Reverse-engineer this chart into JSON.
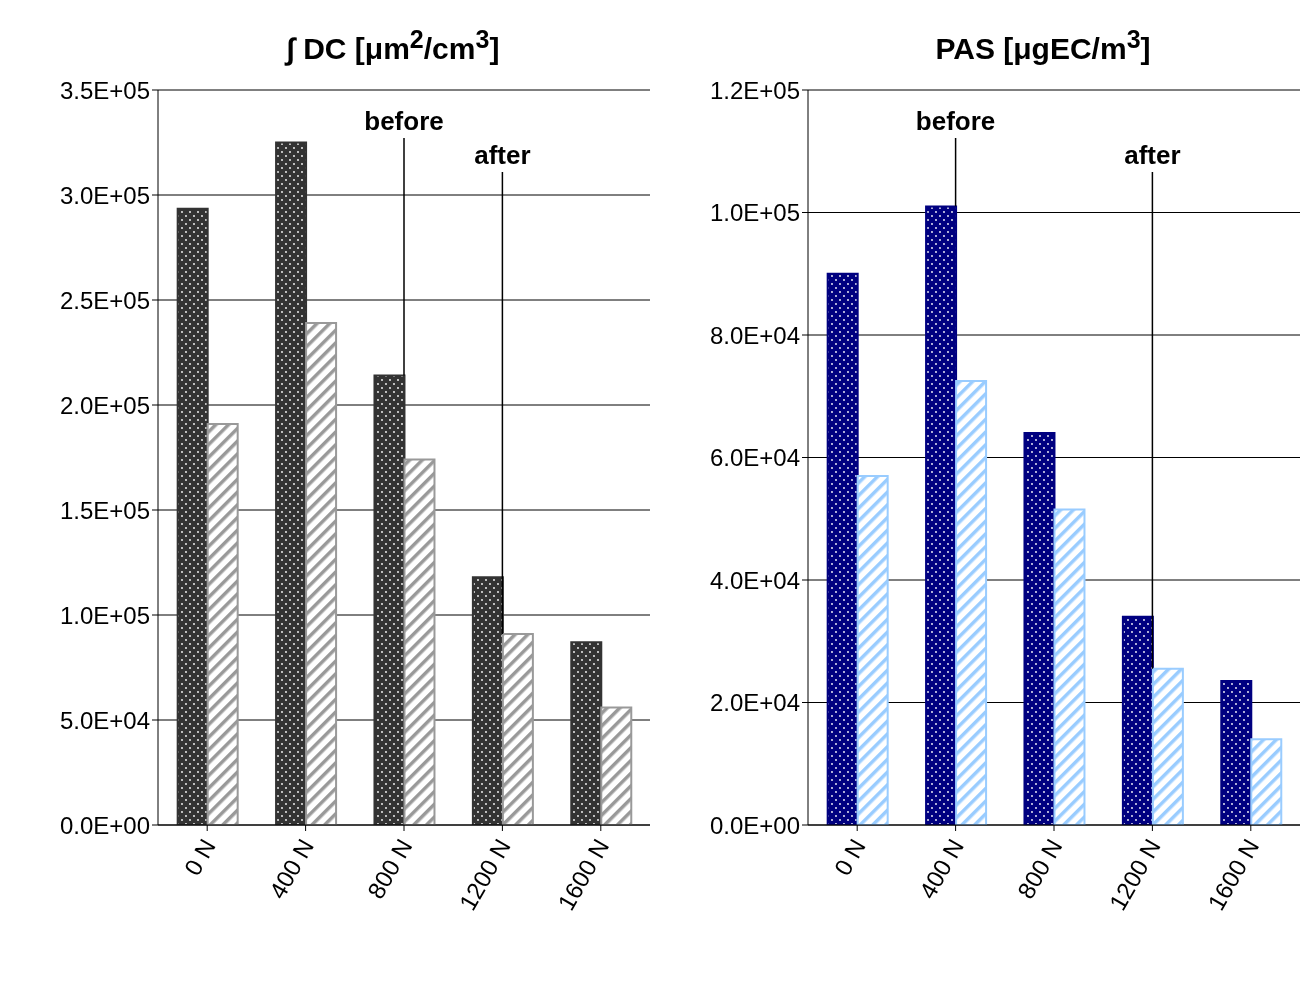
{
  "chart_data": [
    {
      "type": "bar",
      "title": "∫ DC [μm$^{2}$/cm$^{3}$]",
      "categories": [
        "0 N",
        "400 N",
        "800 N",
        "1200 N",
        "1600 N"
      ],
      "series": [
        {
          "color": "#333333",
          "values": [
            293500,
            325000,
            214000,
            118000,
            87000
          ]
        },
        {
          "color": "#999999",
          "values": [
            191000,
            239000,
            174000,
            91000,
            56000
          ]
        }
      ],
      "ylim": [
        0,
        350000
      ],
      "yticks": [
        {
          "value": 0,
          "label": "0.0E+00"
        },
        {
          "value": 50000,
          "label": "5.0E+04"
        },
        {
          "value": 100000,
          "label": "1.0E+05"
        },
        {
          "value": 150000,
          "label": "1.5E+05"
        },
        {
          "value": 200000,
          "label": "2.0E+05"
        },
        {
          "value": 250000,
          "label": "2.5E+05"
        },
        {
          "value": 300000,
          "label": "3.0E+05"
        },
        {
          "value": 350000,
          "label": "3.5E+05"
        }
      ],
      "grid": "y",
      "annotations": [
        {
          "text": "before",
          "x": "800 N",
          "y": 214000
        },
        {
          "text": "after",
          "x": "1200 N",
          "y": 91000
        }
      ]
    },
    {
      "type": "bar",
      "title": "PAS [μgEC/m$^{3}$]",
      "categories": [
        "0 N",
        "400 N",
        "800 N",
        "1200 N",
        "1600 N"
      ],
      "series": [
        {
          "color": "#000080",
          "values": [
            90000,
            101000,
            64000,
            34000,
            23500
          ]
        },
        {
          "color": "#99ccff",
          "values": [
            57000,
            72500,
            51500,
            25500,
            14000
          ]
        }
      ],
      "ylim": [
        0,
        120000
      ],
      "yticks": [
        {
          "value": 0,
          "label": "0.0E+00"
        },
        {
          "value": 20000,
          "label": "2.0E+04"
        },
        {
          "value": 40000,
          "label": "4.0E+04"
        },
        {
          "value": 60000,
          "label": "6.0E+04"
        },
        {
          "value": 80000,
          "label": "8.0E+04"
        },
        {
          "value": 100000,
          "label": "1.0E+05"
        },
        {
          "value": 120000,
          "label": "1.2E+05"
        }
      ],
      "grid": "y",
      "annotations": [
        {
          "text": "before",
          "x": "400 N",
          "y": 101000
        },
        {
          "text": "after",
          "x": "1200 N",
          "y": 25500
        }
      ]
    }
  ]
}
